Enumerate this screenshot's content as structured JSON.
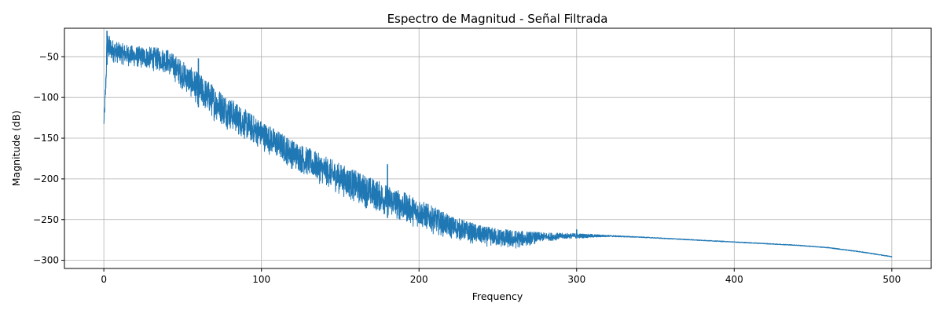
{
  "chart_data": {
    "type": "line",
    "title": "Espectro de Magnitud - Señal Filtrada",
    "xlabel": "Frequency",
    "ylabel": "Magnitude (dB)",
    "xlim": [
      -25,
      525
    ],
    "ylim": [
      -310,
      -15
    ],
    "x_ticks": [
      0,
      100,
      200,
      300,
      400,
      500
    ],
    "y_ticks": [
      -300,
      -250,
      -200,
      -150,
      -100,
      -50
    ],
    "x_tick_labels": [
      "0",
      "100",
      "200",
      "300",
      "400",
      "500"
    ],
    "y_tick_labels": [
      "−300",
      "−250",
      "−200",
      "−150",
      "−100",
      "−50"
    ],
    "grid": true,
    "series": [
      {
        "color": "#1f77b4",
        "style": "dense noisy spectrum; band shows upper and lower envelope of the trace",
        "x": [
          0,
          1,
          2,
          5,
          10,
          20,
          30,
          40,
          50,
          60,
          70,
          80,
          90,
          100,
          120,
          140,
          160,
          180,
          200,
          220,
          240,
          260,
          280,
          300,
          320,
          340,
          360,
          380,
          400,
          420,
          440,
          460,
          480,
          500
        ],
        "upper": [
          -130,
          -80,
          -20,
          -28,
          -33,
          -37,
          -38,
          -40,
          -55,
          -70,
          -85,
          -100,
          -115,
          -128,
          -152,
          -172,
          -190,
          -207,
          -225,
          -245,
          -258,
          -263,
          -266,
          -267,
          -269,
          -271,
          -273,
          -275,
          -277,
          -279,
          -281,
          -284,
          -289,
          -295
        ],
        "lower": [
          -137,
          -118,
          -60,
          -58,
          -60,
          -65,
          -68,
          -72,
          -92,
          -112,
          -130,
          -142,
          -155,
          -165,
          -190,
          -210,
          -232,
          -248,
          -262,
          -275,
          -283,
          -288,
          -277,
          -273,
          -271,
          -272,
          -274,
          -276,
          -278,
          -280,
          -282,
          -285,
          -290,
          -296
        ],
        "peaks": [
          {
            "x": 2,
            "y": -18
          },
          {
            "x": 60,
            "y": -52
          },
          {
            "x": 180,
            "y": -182
          },
          {
            "x": 300,
            "y": -262
          }
        ]
      }
    ]
  }
}
